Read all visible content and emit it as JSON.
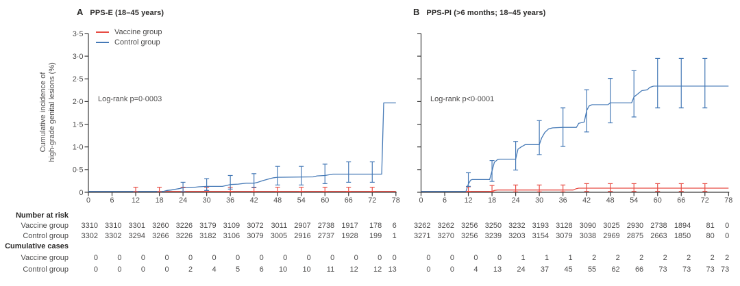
{
  "figure": {
    "y_axis_title_lines": [
      "Cumulative incidence of",
      "high-grade genital lesions (%)"
    ],
    "y_tick_labels": [
      "3·5",
      "3·0",
      "2·5",
      "2·0",
      "1·5",
      "1·0",
      "0·5",
      "0"
    ],
    "x_tick_labels": [
      "0",
      "6",
      "12",
      "18",
      "24",
      "30",
      "36",
      "42",
      "48",
      "54",
      "60",
      "66",
      "72",
      "78"
    ],
    "legend": {
      "items": [
        {
          "label": "Vaccine group",
          "role": "vaccine",
          "color": "#e74c44"
        },
        {
          "label": "Control group",
          "role": "control",
          "color": "#4579b6"
        }
      ]
    },
    "row_labels": {
      "number_at_risk": "Number at risk",
      "cumulative_cases": "Cumulative cases",
      "vaccine": "Vaccine group",
      "control": "Control group"
    },
    "colors": {
      "vaccine": "#e74c44",
      "control": "#4579b6",
      "axis": "#3a3a3a",
      "text": "#4c4b4b",
      "heading": "#262524"
    }
  },
  "chart_data": [
    {
      "type": "line",
      "panel_letter": "A",
      "title": "PPS-E (18–45 years)",
      "annotation": "Log-rank p=0·0003",
      "xlabel": "",
      "ylabel": "Cumulative incidence of high-grade genital lesions (%)",
      "xlim": [
        0,
        78
      ],
      "ylim": [
        0,
        3.5
      ],
      "x_ticks": [
        0,
        6,
        12,
        18,
        24,
        30,
        36,
        42,
        48,
        54,
        60,
        66,
        72,
        78
      ],
      "series": [
        {
          "name": "Vaccine group",
          "role": "vaccine",
          "steps": [
            [
              0,
              0.02
            ],
            [
              78,
              0.02
            ]
          ],
          "error_bars": [
            [
              12,
              0.01,
              0.11
            ],
            [
              18,
              0.01,
              0.11
            ],
            [
              24,
              0.01,
              0.11
            ],
            [
              30,
              0.01,
              0.11
            ],
            [
              36,
              0.01,
              0.11
            ],
            [
              42,
              0.01,
              0.11
            ],
            [
              48,
              0.01,
              0.11
            ],
            [
              54,
              0.01,
              0.11
            ],
            [
              60,
              0.01,
              0.11
            ],
            [
              66,
              0.01,
              0.11
            ],
            [
              72,
              0.01,
              0.11
            ]
          ]
        },
        {
          "name": "Control group",
          "role": "control",
          "steps": [
            [
              0,
              0.02
            ],
            [
              19,
              0.02
            ],
            [
              20,
              0.04
            ],
            [
              21,
              0.05
            ],
            [
              23,
              0.08
            ],
            [
              24,
              0.1
            ],
            [
              26,
              0.1
            ],
            [
              28,
              0.12
            ],
            [
              30,
              0.13
            ],
            [
              34,
              0.13
            ],
            [
              35,
              0.15
            ],
            [
              36,
              0.17
            ],
            [
              38,
              0.18
            ],
            [
              40,
              0.2
            ],
            [
              42,
              0.2
            ],
            [
              43,
              0.22
            ],
            [
              44,
              0.25
            ],
            [
              46,
              0.3
            ],
            [
              47,
              0.32
            ],
            [
              48,
              0.33
            ],
            [
              57,
              0.34
            ],
            [
              58,
              0.36
            ],
            [
              60,
              0.37
            ],
            [
              62,
              0.4
            ],
            [
              74.4,
              0.4
            ],
            [
              74.9,
              1.97
            ],
            [
              78,
              1.97
            ]
          ],
          "error_bars": [
            [
              24,
              0.02,
              0.22
            ],
            [
              30,
              0.04,
              0.3
            ],
            [
              36,
              0.07,
              0.37
            ],
            [
              42,
              0.1,
              0.41
            ],
            [
              48,
              0.16,
              0.57
            ],
            [
              54,
              0.16,
              0.57
            ],
            [
              60,
              0.19,
              0.62
            ],
            [
              66,
              0.22,
              0.67
            ],
            [
              72,
              0.22,
              0.67
            ]
          ]
        }
      ],
      "number_at_risk": {
        "vaccine": [
          "3310",
          "3310",
          "3301",
          "3260",
          "3226",
          "3179",
          "3109",
          "3072",
          "3011",
          "2907",
          "2738",
          "1917",
          "178",
          "6"
        ],
        "control": [
          "3302",
          "3302",
          "3294",
          "3266",
          "3226",
          "3182",
          "3106",
          "3079",
          "3005",
          "2916",
          "2737",
          "1928",
          "199",
          "1"
        ]
      },
      "cumulative_cases": {
        "vaccine": [
          "0",
          "0",
          "0",
          "0",
          "0",
          "0",
          "0",
          "0",
          "0",
          "0",
          "0",
          "0",
          "0",
          "0"
        ],
        "control": [
          "0",
          "0",
          "0",
          "0",
          "2",
          "4",
          "5",
          "6",
          "10",
          "10",
          "11",
          "12",
          "12",
          "13"
        ]
      }
    },
    {
      "type": "line",
      "panel_letter": "B",
      "title": "PPS-PI (>6 months; 18–45 years)",
      "annotation": "Log-rank p<0·0001",
      "xlabel": "",
      "ylabel": "Cumulative incidence of high-grade genital lesions (%)",
      "xlim": [
        0,
        78
      ],
      "ylim": [
        0,
        3.5
      ],
      "x_ticks": [
        0,
        6,
        12,
        18,
        24,
        30,
        36,
        42,
        48,
        54,
        60,
        66,
        72,
        78
      ],
      "series": [
        {
          "name": "Vaccine group",
          "role": "vaccine",
          "steps": [
            [
              0,
              0.02
            ],
            [
              18,
              0.02
            ],
            [
              18.6,
              0.04
            ],
            [
              19.4,
              0.05
            ],
            [
              38.6,
              0.05
            ],
            [
              39.4,
              0.08
            ],
            [
              40,
              0.09
            ],
            [
              78,
              0.09
            ]
          ],
          "error_bars": [
            [
              12,
              0.01,
              0.12
            ],
            [
              18,
              0.01,
              0.15
            ],
            [
              24,
              0.01,
              0.16
            ],
            [
              30,
              0.01,
              0.16
            ],
            [
              36,
              0.01,
              0.16
            ],
            [
              42,
              0.02,
              0.19
            ],
            [
              48,
              0.02,
              0.19
            ],
            [
              54,
              0.02,
              0.19
            ],
            [
              60,
              0.02,
              0.19
            ],
            [
              66,
              0.02,
              0.19
            ],
            [
              72,
              0.02,
              0.19
            ]
          ]
        },
        {
          "name": "Control group",
          "role": "control",
          "steps": [
            [
              0,
              0.02
            ],
            [
              11.4,
              0.02
            ],
            [
              12,
              0.18
            ],
            [
              12.6,
              0.27
            ],
            [
              13,
              0.28
            ],
            [
              17.4,
              0.28
            ],
            [
              18,
              0.47
            ],
            [
              18.6,
              0.66
            ],
            [
              19.4,
              0.72
            ],
            [
              20,
              0.73
            ],
            [
              24,
              0.73
            ],
            [
              24.6,
              0.95
            ],
            [
              25.4,
              1.0
            ],
            [
              26.4,
              1.05
            ],
            [
              30,
              1.05
            ],
            [
              30.6,
              1.2
            ],
            [
              31.4,
              1.32
            ],
            [
              32.4,
              1.4
            ],
            [
              33.4,
              1.42
            ],
            [
              36,
              1.43
            ],
            [
              39.4,
              1.43
            ],
            [
              40,
              1.52
            ],
            [
              41.4,
              1.55
            ],
            [
              42,
              1.8
            ],
            [
              42.6,
              1.9
            ],
            [
              43.4,
              1.93
            ],
            [
              47.4,
              1.93
            ],
            [
              48,
              1.97
            ],
            [
              53.4,
              1.97
            ],
            [
              54,
              2.1
            ],
            [
              55,
              2.17
            ],
            [
              56,
              2.24
            ],
            [
              57.4,
              2.26
            ],
            [
              58,
              2.31
            ],
            [
              59,
              2.34
            ],
            [
              78,
              2.34
            ]
          ],
          "error_bars": [
            [
              12,
              0.13,
              0.43
            ],
            [
              18,
              0.24,
              0.7
            ],
            [
              24,
              0.49,
              1.12
            ],
            [
              30,
              0.83,
              1.58
            ],
            [
              36,
              1.01,
              1.86
            ],
            [
              42,
              1.33,
              2.26
            ],
            [
              48,
              1.53,
              2.51
            ],
            [
              54,
              1.66,
              2.68
            ],
            [
              60,
              1.86,
              2.95
            ],
            [
              66,
              1.86,
              2.95
            ],
            [
              72,
              1.86,
              2.95
            ]
          ]
        }
      ],
      "number_at_risk": {
        "vaccine": [
          "3262",
          "3262",
          "3256",
          "3250",
          "3232",
          "3193",
          "3128",
          "3090",
          "3025",
          "2930",
          "2738",
          "1894",
          "81",
          "0"
        ],
        "control": [
          "3271",
          "3270",
          "3256",
          "3239",
          "3203",
          "3154",
          "3079",
          "3038",
          "2969",
          "2875",
          "2663",
          "1850",
          "80",
          "0"
        ]
      },
      "cumulative_cases": {
        "vaccine": [
          "0",
          "0",
          "0",
          "0",
          "1",
          "1",
          "1",
          "2",
          "2",
          "2",
          "2",
          "2",
          "2",
          "2"
        ],
        "control": [
          "0",
          "0",
          "4",
          "13",
          "24",
          "37",
          "45",
          "55",
          "62",
          "66",
          "73",
          "73",
          "73",
          "73"
        ]
      }
    }
  ]
}
